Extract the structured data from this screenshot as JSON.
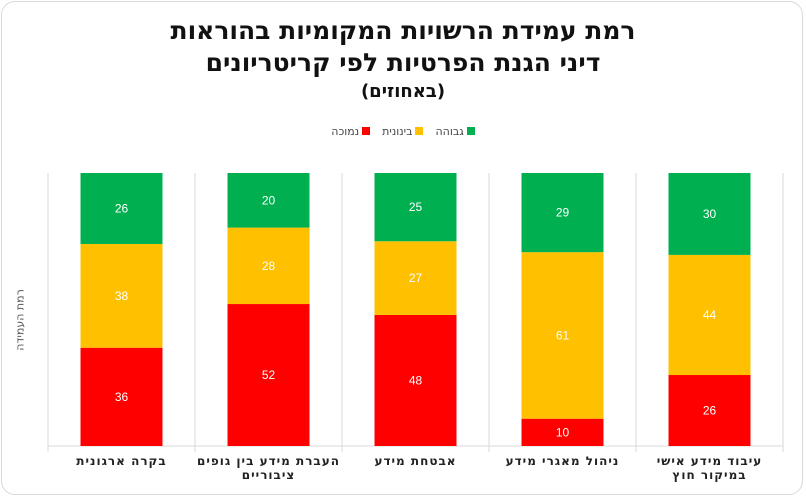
{
  "chart_data": {
    "type": "bar",
    "stacked": true,
    "title": [
      "רמת עמידת הרשויות המקומיות בהוראות",
      "דיני הגנת הפרטיות לפי קריטריונים",
      "(באחוזים)"
    ],
    "ylabel": "רמת העמידה",
    "xlabel": "",
    "ylim": [
      0,
      100
    ],
    "legend_position": "top",
    "categories": [
      "בקרה ארגונית",
      "העברת מידע בין גופים ציבוריים",
      "אבטחת מידע",
      "ניהול מאגרי מידע",
      "עיבוד מידע אישי במיקור חוץ"
    ],
    "series": [
      {
        "name": "נמוכה",
        "color": "#ff0000",
        "values": [
          36,
          52,
          48,
          10,
          26
        ]
      },
      {
        "name": "בינונית",
        "color": "#ffc000",
        "values": [
          38,
          28,
          27,
          61,
          44
        ]
      },
      {
        "name": "גבוהה",
        "color": "#00b050",
        "values": [
          26,
          20,
          25,
          29,
          30
        ]
      }
    ]
  }
}
